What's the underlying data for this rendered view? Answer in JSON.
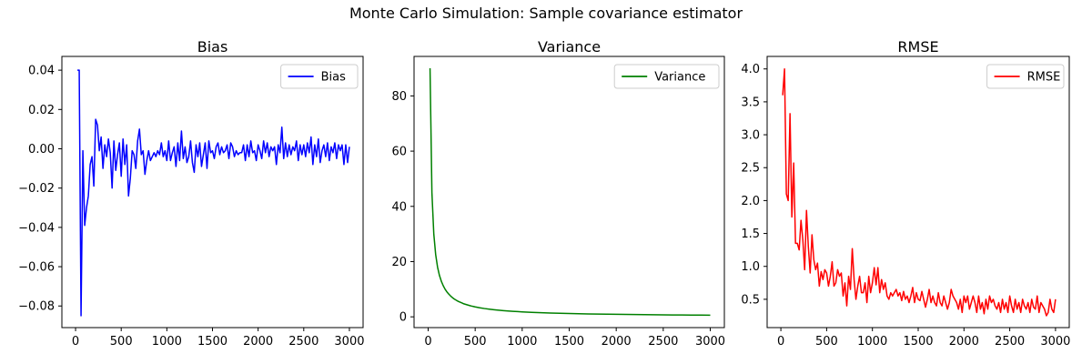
{
  "figure": {
    "title": "Monte Carlo Simulation: Sample covariance estimator"
  },
  "chart_data": [
    {
      "type": "line",
      "title": "Bias",
      "xlabel": "",
      "ylabel": "",
      "xlim": [
        -150,
        3150
      ],
      "ylim": [
        -0.091,
        0.047
      ],
      "xticks": [
        0,
        500,
        1000,
        1500,
        2000,
        2500,
        3000
      ],
      "yticks": [
        -0.08,
        -0.06,
        -0.04,
        -0.02,
        0.0,
        0.02,
        0.04
      ],
      "ytick_labels": [
        "−0.08",
        "−0.06",
        "−0.04",
        "−0.02",
        "0.00",
        "0.02",
        "0.04"
      ],
      "grid": false,
      "legend_position": "top-right",
      "series": [
        {
          "name": "Bias",
          "color": "#0000ff",
          "x": [
            20,
            40,
            60,
            80,
            100,
            120,
            140,
            160,
            180,
            200,
            220,
            240,
            260,
            280,
            300,
            320,
            340,
            360,
            380,
            400,
            420,
            440,
            460,
            480,
            500,
            520,
            540,
            560,
            580,
            600,
            620,
            640,
            660,
            680,
            700,
            720,
            740,
            760,
            780,
            800,
            820,
            840,
            860,
            880,
            900,
            920,
            940,
            960,
            980,
            1000,
            1020,
            1040,
            1060,
            1080,
            1100,
            1120,
            1140,
            1160,
            1180,
            1200,
            1220,
            1240,
            1260,
            1280,
            1300,
            1320,
            1340,
            1360,
            1380,
            1400,
            1420,
            1440,
            1460,
            1480,
            1500,
            1520,
            1540,
            1560,
            1580,
            1600,
            1620,
            1640,
            1660,
            1680,
            1700,
            1720,
            1740,
            1760,
            1780,
            1800,
            1820,
            1840,
            1860,
            1880,
            1900,
            1920,
            1940,
            1960,
            1980,
            2000,
            2020,
            2040,
            2060,
            2080,
            2100,
            2120,
            2140,
            2160,
            2180,
            2200,
            2220,
            2240,
            2260,
            2280,
            2300,
            2320,
            2340,
            2360,
            2380,
            2400,
            2420,
            2440,
            2460,
            2480,
            2500,
            2520,
            2540,
            2560,
            2580,
            2600,
            2620,
            2640,
            2660,
            2680,
            2700,
            2720,
            2740,
            2760,
            2780,
            2800,
            2820,
            2840,
            2860,
            2880,
            2900,
            2920,
            2940,
            2960,
            2980,
            3000
          ],
          "y": [
            0.04,
            0.04,
            -0.085,
            -0.001,
            -0.039,
            -0.03,
            -0.024,
            -0.008,
            -0.004,
            -0.019,
            0.015,
            0.012,
            -0.001,
            0.006,
            -0.01,
            0.002,
            -0.004,
            0.005,
            -0.002,
            -0.02,
            0.004,
            -0.011,
            -0.003,
            0.003,
            -0.014,
            0.005,
            -0.008,
            0.002,
            -0.024,
            -0.015,
            -0.001,
            -0.003,
            -0.01,
            0.004,
            0.01,
            -0.003,
            -0.001,
            -0.013,
            -0.006,
            -0.001,
            -0.006,
            -0.004,
            -0.002,
            -0.004,
            -0.001,
            -0.003,
            0.003,
            -0.004,
            -0.001,
            -0.006,
            0.004,
            -0.006,
            -0.002,
            0.001,
            -0.009,
            0.003,
            -0.006,
            0.009,
            -0.005,
            0.001,
            -0.007,
            -0.004,
            0.004,
            -0.007,
            -0.012,
            0.002,
            -0.004,
            0.003,
            -0.009,
            -0.003,
            0.003,
            -0.01,
            0.004,
            -0.002,
            -0.001,
            -0.005,
            0.001,
            0.003,
            -0.003,
            0.001,
            -0.002,
            -0.001,
            0.002,
            -0.005,
            0.003,
            0.001,
            -0.004,
            -0.001,
            -0.003,
            -0.002,
            -0.002,
            0.002,
            -0.006,
            0.002,
            -0.004,
            0.004,
            -0.002,
            -0.001,
            -0.006,
            0.002,
            -0.001,
            -0.005,
            0.004,
            -0.002,
            0.003,
            -0.004,
            0.001,
            -0.001,
            0.001,
            -0.008,
            0.002,
            -0.002,
            0.011,
            -0.005,
            0.003,
            -0.004,
            0.002,
            -0.003,
            0.001,
            -0.001,
            0.004,
            -0.006,
            0.002,
            -0.003,
            0.002,
            -0.004,
            0.003,
            -0.002,
            0.006,
            -0.008,
            0.002,
            -0.004,
            0.005,
            -0.007,
            -0.001,
            0.002,
            -0.004,
            0.003,
            -0.006,
            0.001,
            -0.002,
            0.003,
            -0.005,
            0.002,
            -0.001,
            0.002,
            -0.008,
            0.002,
            -0.007,
            0.001
          ]
        }
      ]
    },
    {
      "type": "line",
      "title": "Variance",
      "xlabel": "",
      "ylabel": "",
      "xlim": [
        -150,
        3150
      ],
      "ylim": [
        -3.9,
        94.3
      ],
      "xticks": [
        0,
        500,
        1000,
        1500,
        2000,
        2500,
        3000
      ],
      "yticks": [
        0,
        20,
        40,
        60,
        80
      ],
      "ytick_labels": [
        "0",
        "20",
        "40",
        "60",
        "80"
      ],
      "grid": false,
      "legend_position": "top-right",
      "series": [
        {
          "name": "Variance",
          "color": "#008000",
          "x": [
            20,
            40,
            60,
            80,
            100,
            120,
            140,
            160,
            180,
            200,
            220,
            240,
            260,
            280,
            300,
            320,
            340,
            360,
            380,
            400,
            420,
            440,
            460,
            480,
            500,
            550,
            600,
            650,
            700,
            750,
            800,
            850,
            900,
            950,
            1000,
            1100,
            1200,
            1300,
            1400,
            1500,
            1600,
            1700,
            1800,
            1900,
            2000,
            2100,
            2200,
            2300,
            2400,
            2500,
            2600,
            2700,
            2800,
            2900,
            3000
          ],
          "y": [
            90.0,
            45.0,
            30.0,
            22.5,
            18.0,
            15.0,
            12.9,
            11.3,
            10.0,
            9.0,
            8.2,
            7.5,
            6.9,
            6.4,
            6.0,
            5.6,
            5.3,
            5.0,
            4.7,
            4.5,
            4.3,
            4.1,
            3.9,
            3.75,
            3.6,
            3.27,
            3.0,
            2.77,
            2.57,
            2.4,
            2.25,
            2.12,
            2.0,
            1.89,
            1.8,
            1.64,
            1.5,
            1.38,
            1.29,
            1.2,
            1.13,
            1.06,
            1.0,
            0.95,
            0.9,
            0.86,
            0.82,
            0.78,
            0.75,
            0.72,
            0.69,
            0.67,
            0.64,
            0.62,
            0.6
          ]
        }
      ]
    },
    {
      "type": "line",
      "title": "RMSE",
      "xlabel": "",
      "ylabel": "",
      "xlim": [
        -150,
        3150
      ],
      "ylim": [
        0.07,
        4.19
      ],
      "xticks": [
        0,
        500,
        1000,
        1500,
        2000,
        2500,
        3000
      ],
      "yticks": [
        0.5,
        1.0,
        1.5,
        2.0,
        2.5,
        3.0,
        3.5,
        4.0
      ],
      "ytick_labels": [
        "0.5",
        "1.0",
        "1.5",
        "2.0",
        "2.5",
        "3.0",
        "3.5",
        "4.0"
      ],
      "grid": false,
      "legend_position": "top-right",
      "series": [
        {
          "name": "RMSE",
          "color": "#ff0000",
          "x": [
            20,
            40,
            60,
            80,
            100,
            120,
            140,
            160,
            180,
            200,
            220,
            240,
            260,
            280,
            300,
            320,
            340,
            360,
            380,
            400,
            420,
            440,
            460,
            480,
            500,
            520,
            540,
            560,
            580,
            600,
            620,
            640,
            660,
            680,
            700,
            720,
            740,
            760,
            780,
            800,
            820,
            840,
            860,
            880,
            900,
            920,
            940,
            960,
            980,
            1000,
            1020,
            1040,
            1060,
            1080,
            1100,
            1120,
            1140,
            1160,
            1180,
            1200,
            1220,
            1240,
            1260,
            1280,
            1300,
            1320,
            1340,
            1360,
            1380,
            1400,
            1420,
            1440,
            1460,
            1480,
            1500,
            1520,
            1540,
            1560,
            1580,
            1600,
            1620,
            1640,
            1660,
            1680,
            1700,
            1720,
            1740,
            1760,
            1780,
            1800,
            1820,
            1840,
            1860,
            1880,
            1900,
            1920,
            1940,
            1960,
            1980,
            2000,
            2020,
            2040,
            2060,
            2080,
            2100,
            2120,
            2140,
            2160,
            2180,
            2200,
            2220,
            2240,
            2260,
            2280,
            2300,
            2320,
            2340,
            2360,
            2380,
            2400,
            2420,
            2440,
            2460,
            2480,
            2500,
            2520,
            2540,
            2560,
            2580,
            2600,
            2620,
            2640,
            2660,
            2680,
            2700,
            2720,
            2740,
            2760,
            2780,
            2800,
            2820,
            2840,
            2860,
            2880,
            2900,
            2920,
            2940,
            2960,
            2980,
            3000
          ],
          "y": [
            3.6,
            4.0,
            2.1,
            2.0,
            3.32,
            1.75,
            2.57,
            1.35,
            1.35,
            1.25,
            1.7,
            1.4,
            0.95,
            1.85,
            1.3,
            0.9,
            1.48,
            1.1,
            0.95,
            1.05,
            0.7,
            0.92,
            0.8,
            0.95,
            0.9,
            0.7,
            0.85,
            1.07,
            0.7,
            0.75,
            0.95,
            0.85,
            0.9,
            0.55,
            0.75,
            0.4,
            0.85,
            0.65,
            1.27,
            0.8,
            0.5,
            0.7,
            0.85,
            0.6,
            0.6,
            0.75,
            0.45,
            0.85,
            0.6,
            0.75,
            0.98,
            0.72,
            0.98,
            0.6,
            0.8,
            0.65,
            0.75,
            0.55,
            0.5,
            0.6,
            0.55,
            0.6,
            0.65,
            0.55,
            0.6,
            0.48,
            0.62,
            0.5,
            0.55,
            0.45,
            0.55,
            0.68,
            0.45,
            0.6,
            0.5,
            0.48,
            0.62,
            0.5,
            0.38,
            0.5,
            0.65,
            0.45,
            0.55,
            0.45,
            0.4,
            0.6,
            0.45,
            0.4,
            0.55,
            0.45,
            0.35,
            0.45,
            0.65,
            0.55,
            0.5,
            0.45,
            0.35,
            0.5,
            0.3,
            0.55,
            0.45,
            0.55,
            0.35,
            0.45,
            0.55,
            0.45,
            0.3,
            0.55,
            0.35,
            0.45,
            0.28,
            0.5,
            0.35,
            0.55,
            0.45,
            0.5,
            0.4,
            0.35,
            0.45,
            0.3,
            0.5,
            0.35,
            0.45,
            0.3,
            0.55,
            0.4,
            0.3,
            0.5,
            0.35,
            0.45,
            0.3,
            0.5,
            0.4,
            0.35,
            0.45,
            0.3,
            0.5,
            0.38,
            0.35,
            0.55,
            0.3,
            0.45,
            0.4,
            0.35,
            0.25,
            0.3,
            0.5,
            0.35,
            0.3,
            0.5
          ]
        }
      ]
    }
  ]
}
